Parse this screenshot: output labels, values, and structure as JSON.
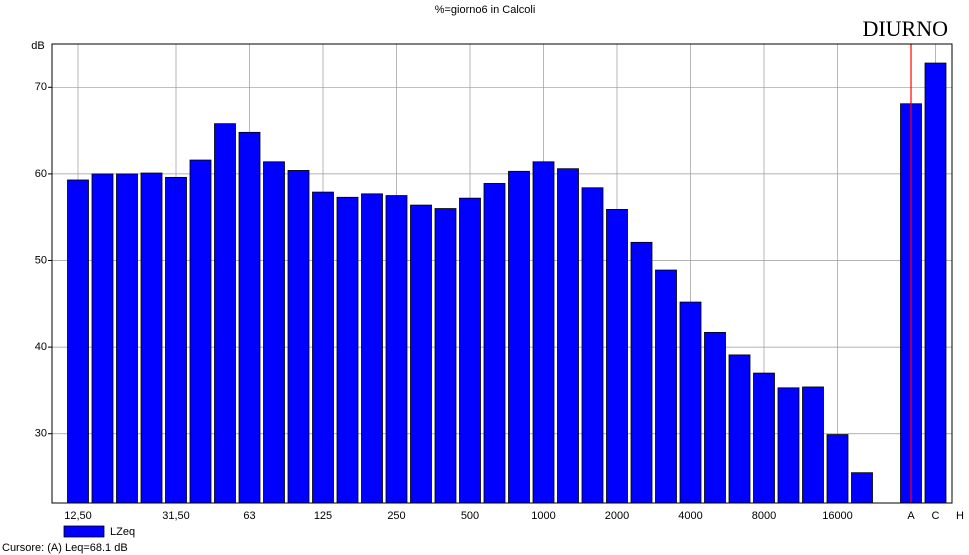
{
  "chart_data": {
    "type": "bar",
    "title": "%=giorno6 in Calcoli",
    "subtitle": "DIURNO",
    "y_label": "dB",
    "categories": [
      "12,50",
      null,
      null,
      null,
      "31,50",
      null,
      null,
      "63",
      null,
      null,
      "125",
      null,
      null,
      "250",
      null,
      null,
      "500",
      null,
      null,
      "1000",
      null,
      null,
      "2000",
      null,
      null,
      "4000",
      null,
      null,
      "8000",
      null,
      null,
      "16000",
      null,
      null,
      "A",
      "C",
      "H"
    ],
    "series": [
      {
        "name": "LZeq",
        "color": "#0000ff",
        "values": [
          59.3,
          60.0,
          60.0,
          60.1,
          59.6,
          61.6,
          65.8,
          64.8,
          61.4,
          60.4,
          57.9,
          57.3,
          57.7,
          57.5,
          56.4,
          56.0,
          57.2,
          58.9,
          60.3,
          61.4,
          60.6,
          58.4,
          55.9,
          52.1,
          48.9,
          45.2,
          41.7,
          39.1,
          37.0,
          35.3,
          35.4,
          29.9,
          25.5,
          null,
          68.1,
          72.8,
          null
        ]
      }
    ],
    "ylim": [
      22,
      75
    ],
    "yticks": [
      30,
      40,
      50,
      60,
      70
    ],
    "grid": true,
    "cursor_index": 34,
    "footer": "Cursore: (A) Leq=68.1 dB"
  }
}
